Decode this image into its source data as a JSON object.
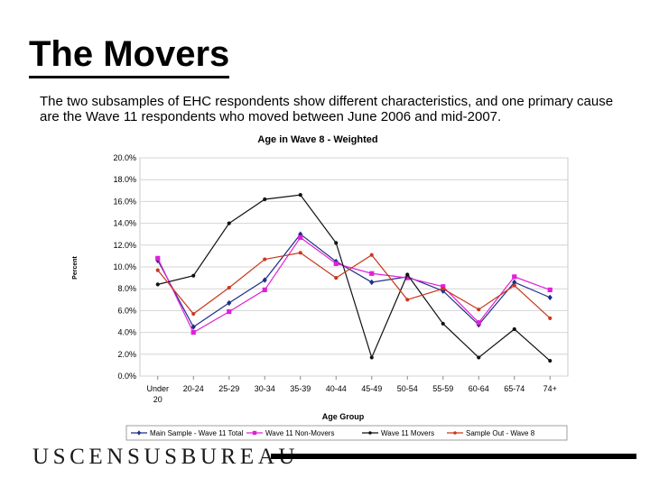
{
  "slide": {
    "title": "The Movers",
    "subtitle": "The two subsamples of EHC respondents show different characteristics, and one primary cause are the Wave 11 respondents who moved between June 2006 and mid-2007.",
    "footer_logo": "USCENSUSBUREAU"
  },
  "chart_data": {
    "type": "line",
    "title": "Age in Wave 8 - Weighted",
    "xlabel": "Age Group",
    "ylabel": "Percent",
    "categories": [
      "Under 20",
      "20-24",
      "25-29",
      "30-34",
      "35-39",
      "40-44",
      "45-49",
      "50-54",
      "55-59",
      "60-64",
      "65-74",
      "74+"
    ],
    "ylim": [
      0,
      20
    ],
    "yticks": [
      0,
      2,
      4,
      6,
      8,
      10,
      12,
      14,
      16,
      18,
      20
    ],
    "ytick_labels": [
      "0.0%",
      "2.0%",
      "4.0%",
      "6.0%",
      "8.0%",
      "10.0%",
      "12.0%",
      "14.0%",
      "16.0%",
      "18.0%",
      "20.0%"
    ],
    "grid": true,
    "legend_position": "bottom",
    "series": [
      {
        "name": "Main Sample - Wave 11 Total",
        "color": "#1f2f86",
        "marker": "diamond",
        "values": [
          10.6,
          4.5,
          6.7,
          8.8,
          13.0,
          10.5,
          8.6,
          9.1,
          7.8,
          4.7,
          8.6,
          7.2
        ]
      },
      {
        "name": "Wave 11 Non-Movers",
        "color": "#e020d8",
        "marker": "square",
        "values": [
          10.8,
          4.0,
          5.9,
          7.9,
          12.7,
          10.3,
          9.4,
          9.0,
          8.2,
          4.9,
          9.1,
          7.9
        ]
      },
      {
        "name": "Wave 11 Movers",
        "color": "#111111",
        "marker": "dot",
        "values": [
          8.4,
          9.2,
          14.0,
          16.2,
          16.6,
          12.2,
          1.7,
          9.3,
          4.8,
          1.7,
          4.3,
          1.4
        ]
      },
      {
        "name": "Sample Out - Wave 8",
        "color": "#c8381e",
        "marker": "dot",
        "values": [
          9.7,
          5.7,
          8.1,
          10.7,
          11.3,
          9.0,
          11.1,
          7.0,
          8.0,
          6.1,
          8.3,
          5.3
        ]
      }
    ]
  }
}
